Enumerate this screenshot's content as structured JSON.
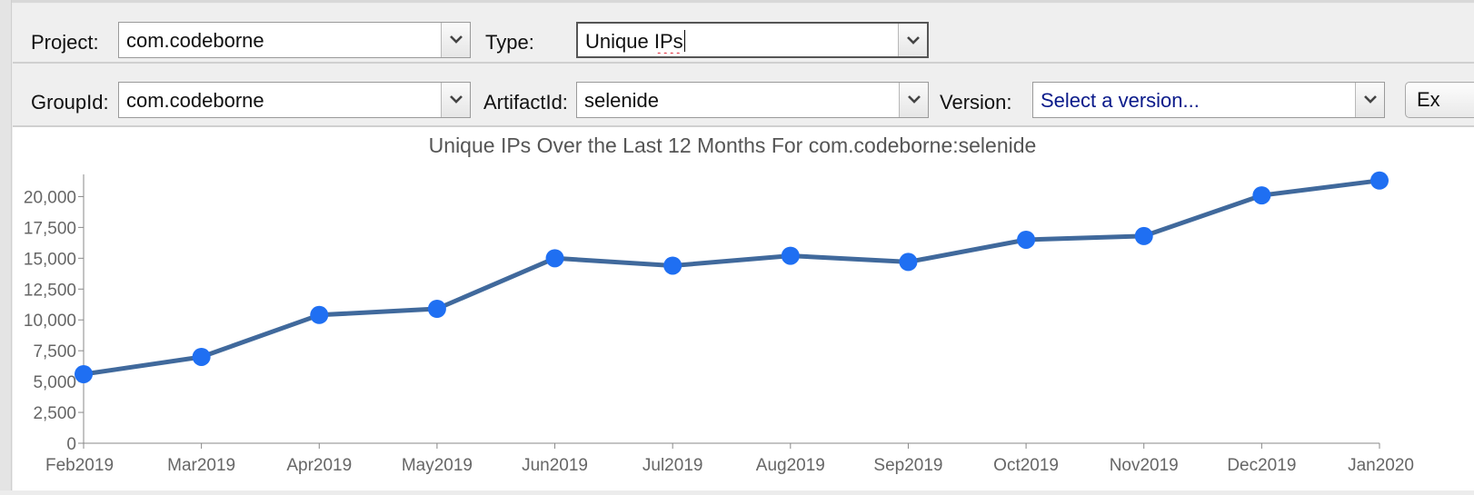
{
  "toolbar": {
    "project_label": "Project:",
    "project_value": "com.codeborne",
    "type_label": "Type:",
    "type_value_prefix": "Unique ",
    "type_value_misspelled": "IPs",
    "groupid_label": "GroupId:",
    "groupid_value": "com.codeborne",
    "artifactid_label": "ArtifactId:",
    "artifactid_value": "selenide",
    "version_label": "Version:",
    "version_placeholder": "Select a version...",
    "extra_button_label": "Ex"
  },
  "icons": {
    "dropdown": "chevron-down-icon"
  },
  "colors": {
    "line": "#40699c",
    "point": "#1f6ff2",
    "placeholder_text": "#0a1a8a"
  },
  "chart_data": {
    "type": "line",
    "title": "Unique IPs Over the Last 12 Months For com.codeborne:selenide",
    "xlabel": "",
    "ylabel": "",
    "categories": [
      "Feb2019",
      "Mar2019",
      "Apr2019",
      "May2019",
      "Jun2019",
      "Jul2019",
      "Aug2019",
      "Sep2019",
      "Oct2019",
      "Nov2019",
      "Dec2019",
      "Jan2020"
    ],
    "series": [
      {
        "values": [
          5600,
          7000,
          10400,
          10900,
          15000,
          14400,
          15200,
          14700,
          16500,
          16800,
          20100,
          21300
        ]
      }
    ],
    "ylim": [
      0,
      21800
    ],
    "yticks": [
      0,
      2500,
      5000,
      7500,
      10000,
      12500,
      15000,
      17500,
      20000
    ],
    "ytick_labels": [
      "0",
      "2,500",
      "5,000",
      "7,500",
      "10,000",
      "12,500",
      "15,000",
      "17,500",
      "20,000"
    ],
    "grid": false,
    "legend": "none"
  }
}
